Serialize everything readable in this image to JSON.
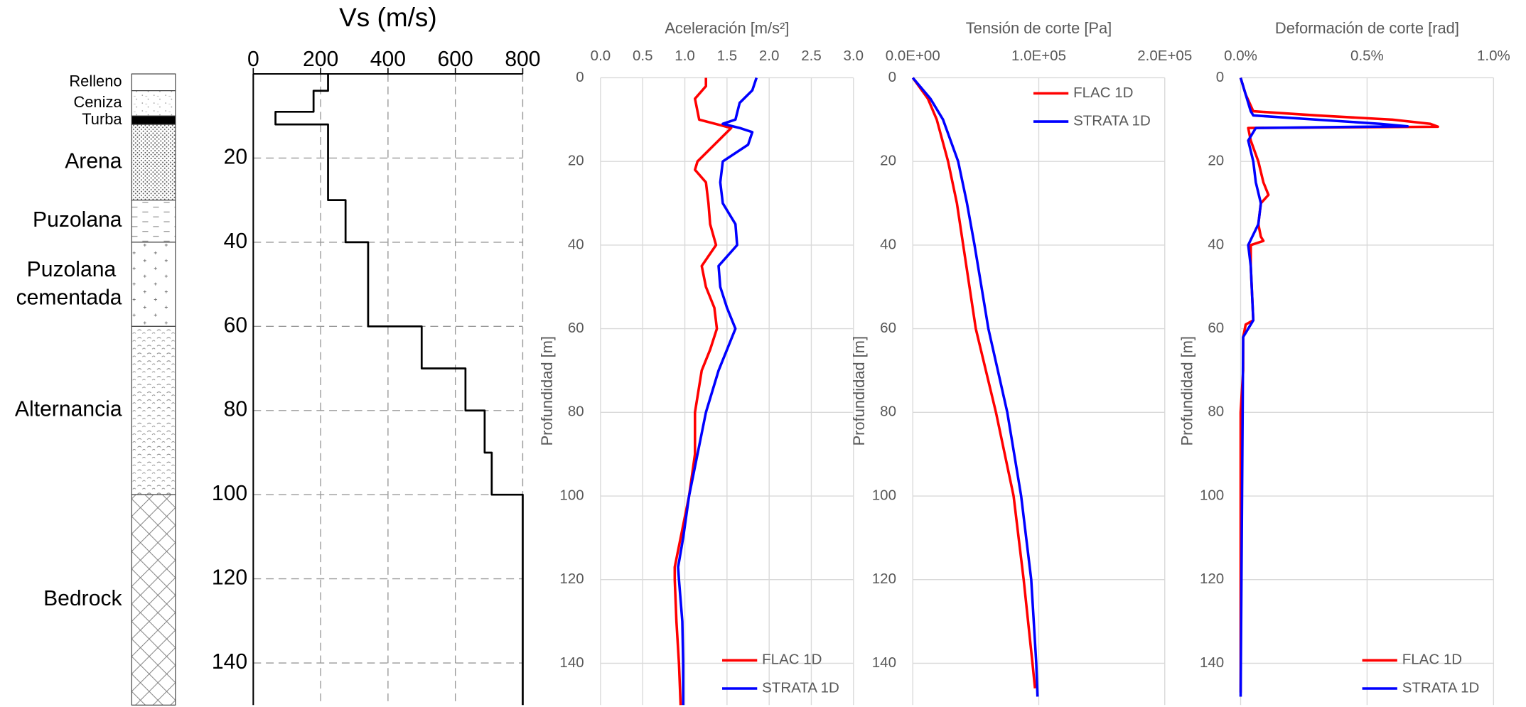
{
  "chart_data": [
    {
      "type": "strata",
      "categories": [
        "Relleno",
        "Ceniza",
        "Turba",
        "Arena",
        "Puzolana",
        "Puzolana cementada",
        "Alternancia",
        "Bedrock"
      ],
      "top": [
        0,
        4,
        10,
        12,
        30,
        40,
        60,
        100
      ],
      "bottom": [
        4,
        10,
        12,
        30,
        40,
        60,
        100,
        150
      ],
      "ylim": [
        0,
        150
      ]
    },
    {
      "type": "line",
      "title": "Vs (m/s)",
      "xlim": [
        0,
        800
      ],
      "xticks": [
        0,
        200,
        400,
        600,
        800
      ],
      "ylim": [
        0,
        150
      ],
      "yticks": [
        20,
        40,
        60,
        80,
        100,
        120,
        140
      ],
      "grid": true,
      "grid_style": "dashed",
      "series": [
        {
          "color": "#000000",
          "depth": [
            0,
            4,
            4,
            9,
            9,
            12,
            12,
            30,
            30,
            40,
            40,
            60,
            60,
            70,
            70,
            80,
            80,
            90,
            90,
            100,
            100,
            150
          ],
          "values": [
            222,
            222,
            179,
            179,
            66,
            66,
            222,
            222,
            274,
            274,
            341,
            341,
            500,
            500,
            630,
            630,
            687,
            687,
            708,
            708,
            800,
            800
          ]
        }
      ]
    },
    {
      "type": "line",
      "title": "Aceleración [m/s²]",
      "ylabel": "Profundidad  [m]",
      "xlim": [
        0,
        3
      ],
      "xticks": [
        {
          "value": 0,
          "label": "0.0"
        },
        0.5,
        {
          "value": 1,
          "label": "1.0"
        },
        1.5,
        {
          "value": 2,
          "label": "2.0"
        },
        2.5,
        {
          "value": 3,
          "label": "3.0"
        }
      ],
      "ylim": [
        0,
        150
      ],
      "yticks": [
        0,
        20,
        40,
        60,
        80,
        100,
        120,
        140
      ],
      "grid": true,
      "grid_style": "solid",
      "legend": "lower right",
      "series": [
        {
          "name": "FLAC 1D",
          "color": "#ff0000",
          "depth": [
            0,
            2,
            5,
            10,
            12,
            15,
            20,
            22,
            25,
            30,
            35,
            40,
            45,
            50,
            55,
            60,
            65,
            70,
            80,
            90,
            100,
            110,
            117,
            120,
            130,
            140,
            150
          ],
          "values": [
            1.25,
            1.25,
            1.12,
            1.17,
            1.55,
            1.4,
            1.15,
            1.12,
            1.25,
            1.28,
            1.3,
            1.37,
            1.2,
            1.25,
            1.35,
            1.38,
            1.3,
            1.2,
            1.12,
            1.12,
            1.05,
            0.95,
            0.88,
            0.88,
            0.9,
            0.93,
            0.95
          ]
        },
        {
          "name": "STRATA 1D",
          "color": "#0000ff",
          "depth": [
            0,
            3,
            6,
            10,
            11,
            12,
            13,
            16,
            20,
            25,
            30,
            35,
            40,
            45,
            50,
            55,
            60,
            65,
            70,
            80,
            90,
            100,
            110,
            117,
            120,
            130,
            140,
            150
          ],
          "values": [
            1.85,
            1.8,
            1.65,
            1.6,
            1.45,
            1.65,
            1.8,
            1.75,
            1.45,
            1.42,
            1.45,
            1.6,
            1.62,
            1.4,
            1.42,
            1.5,
            1.6,
            1.5,
            1.4,
            1.25,
            1.15,
            1.05,
            0.98,
            0.92,
            0.93,
            0.97,
            0.98,
            0.98
          ]
        }
      ]
    },
    {
      "type": "line",
      "title": "Tensión de corte [Pa]",
      "ylabel": "Profundidad  [m]",
      "xlim": [
        0,
        200000
      ],
      "xticks": [
        {
          "value": 0,
          "label": "0.0E+00"
        },
        {
          "value": 100000,
          "label": "1.0E+05"
        },
        {
          "value": 200000,
          "label": "2.0E+05"
        }
      ],
      "ylim": [
        0,
        150
      ],
      "yticks": [
        0,
        20,
        40,
        60,
        80,
        100,
        120,
        140
      ],
      "grid": true,
      "grid_style": "solid",
      "legend": "upper right",
      "series": [
        {
          "name": "FLAC 1D",
          "color": "#ff0000",
          "depth": [
            0,
            5,
            10,
            20,
            30,
            40,
            60,
            80,
            100,
            120,
            140,
            146
          ],
          "values": [
            0,
            12000,
            19000,
            28000,
            35000,
            40000,
            50000,
            66000,
            80000,
            88000,
            95000,
            97000
          ]
        },
        {
          "name": "STRATA 1D",
          "color": "#0000ff",
          "depth": [
            0,
            5,
            10,
            20,
            30,
            40,
            60,
            80,
            100,
            120,
            140,
            148
          ],
          "values": [
            0,
            14000,
            24000,
            36000,
            43000,
            49000,
            60000,
            75000,
            86000,
            94000,
            98000,
            99000
          ]
        }
      ]
    },
    {
      "type": "line",
      "title": "Deformación de corte [rad]",
      "ylabel": "Profundidad  [m]",
      "xlim": [
        0,
        1
      ],
      "xticks": [
        {
          "value": 0,
          "label": "0.0%"
        },
        {
          "value": 0.5,
          "label": "0.5%"
        },
        {
          "value": 1,
          "label": "1.0%"
        }
      ],
      "ylim": [
        0,
        150
      ],
      "yticks": [
        0,
        20,
        40,
        60,
        80,
        100,
        120,
        140
      ],
      "grid": true,
      "grid_style": "solid",
      "legend": "lower right",
      "series": [
        {
          "name": "FLAC 1D",
          "color": "#ff0000",
          "depth": [
            0,
            4,
            8,
            9,
            10,
            11,
            11.7,
            12,
            15,
            20,
            25,
            28,
            30,
            35,
            38,
            39,
            40,
            45,
            58,
            59,
            62,
            70,
            80,
            147
          ],
          "values": [
            0,
            0.02,
            0.05,
            0.3,
            0.6,
            0.75,
            0.78,
            0.03,
            0.04,
            0.07,
            0.09,
            0.11,
            0.08,
            0.07,
            0.08,
            0.09,
            0.04,
            0.04,
            0.05,
            0.02,
            0.01,
            0.01,
            0,
            0
          ]
        },
        {
          "name": "STRATA 1D",
          "color": "#0000ff",
          "depth": [
            0,
            4,
            8,
            9,
            10,
            11,
            11.6,
            12,
            15,
            20,
            25,
            30,
            35,
            40,
            45,
            58,
            60,
            62,
            148
          ],
          "values": [
            0,
            0.02,
            0.04,
            0.05,
            0.3,
            0.55,
            0.66,
            0.06,
            0.03,
            0.05,
            0.06,
            0.08,
            0.07,
            0.03,
            0.04,
            0.05,
            0.03,
            0.01,
            0
          ]
        }
      ]
    }
  ]
}
